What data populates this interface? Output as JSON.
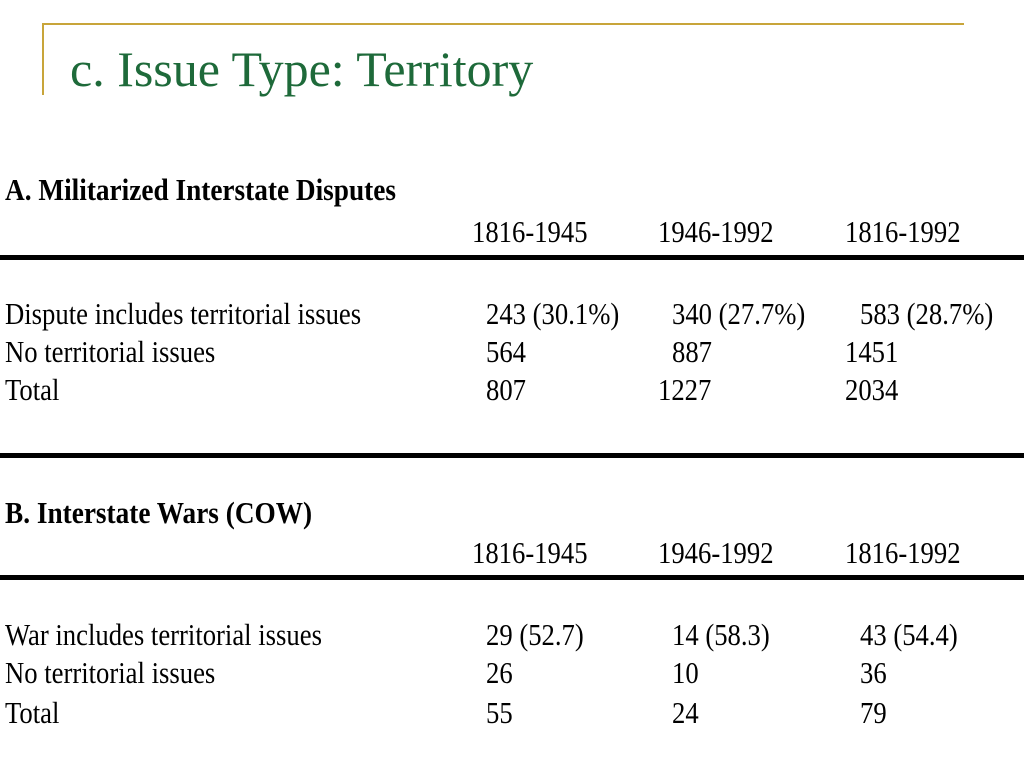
{
  "slide": {
    "title": "c. Issue Type: Territory"
  },
  "section_a": {
    "heading": "A. Militarized Interstate Disputes",
    "columns": [
      "1816-1945",
      "1946-1992",
      "1816-1992"
    ],
    "rows": [
      {
        "label": "Dispute includes territorial issues",
        "values": [
          "243 (30.1%)",
          "340 (27.7%)",
          "583 (28.7%)"
        ]
      },
      {
        "label": "No territorial issues",
        "values": [
          "564",
          "887",
          "1451"
        ]
      },
      {
        "label": "Total",
        "values": [
          "807",
          "1227",
          "2034"
        ]
      }
    ]
  },
  "section_b": {
    "heading": "B. Interstate Wars (COW)",
    "columns": [
      "1816-1945",
      "1946-1992",
      "1816-1992"
    ],
    "rows": [
      {
        "label": "War includes territorial issues",
        "values": [
          "29 (52.7)",
          "14 (58.3)",
          "43 (54.4)"
        ]
      },
      {
        "label": "No territorial issues",
        "values": [
          "26",
          "10",
          "36"
        ]
      },
      {
        "label": "Total",
        "values": [
          "55",
          "24",
          "79"
        ]
      }
    ]
  }
}
